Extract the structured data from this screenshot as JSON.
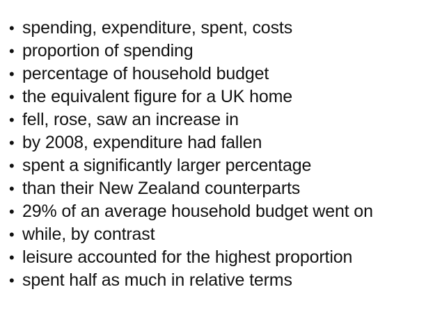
{
  "phrases": {
    "bullet": "•",
    "items": [
      "spending, expenditure, spent, costs",
      "proportion of spending",
      "percentage of household budget",
      "the equivalent figure for a UK home",
      "fell, rose, saw an increase in",
      "by 2008, expenditure had fallen",
      "spent a significantly larger percentage",
      "than their New Zealand counterparts",
      "29% of an average household budget went on",
      "while, by contrast",
      "leisure accounted for the highest proportion",
      "spent half as much in relative terms"
    ]
  }
}
